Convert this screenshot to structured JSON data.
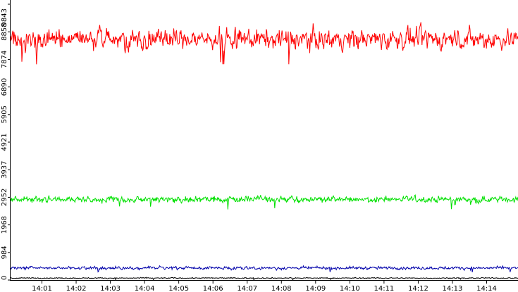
{
  "chart_data": {
    "type": "line",
    "title": "",
    "xlabel": "",
    "ylabel": "",
    "ylim": [
      0,
      9843
    ],
    "grid": false,
    "legend": "none",
    "y_ticks": [
      "0",
      "984",
      "1968",
      "2952",
      "3937",
      "4921",
      "5905",
      "6890",
      "7874",
      "8858",
      "9843"
    ],
    "x_ticks": [
      "14:01",
      "14:02",
      "14:03",
      "14:04",
      "14:05",
      "14:06",
      "14:07",
      "14:08",
      "14:09",
      "14:10",
      "14:11",
      "14:12",
      "14:13",
      "14:14"
    ],
    "x_range": [
      "14:00:05",
      "14:14:55"
    ],
    "series": [
      {
        "color": "#ff0000",
        "mean": 8600,
        "noise": 550,
        "approx_range": [
          7700,
          9840
        ]
      },
      {
        "color": "#00e000",
        "mean": 2880,
        "noise": 170,
        "approx_range": [
          2150,
          3150
        ]
      },
      {
        "color": "#0000aa",
        "mean": 430,
        "noise": 80,
        "approx_range": [
          250,
          700
        ]
      },
      {
        "color": "#000000",
        "mean": 70,
        "noise": 30,
        "approx_range": [
          0,
          150
        ]
      }
    ]
  }
}
